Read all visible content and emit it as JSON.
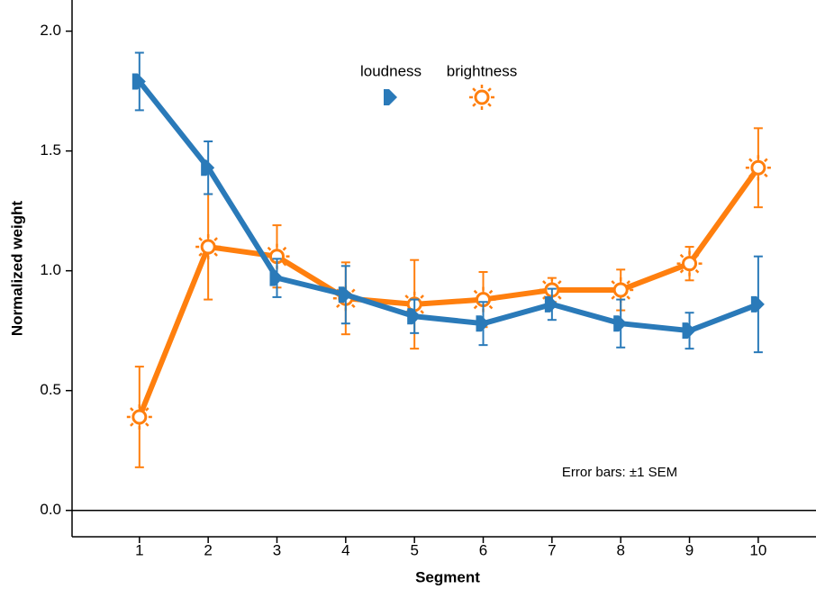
{
  "chart_data": {
    "type": "line",
    "x": [
      1,
      2,
      3,
      4,
      5,
      6,
      7,
      8,
      9,
      10
    ],
    "series": [
      {
        "name": "loudness",
        "color": "#2a7ab9",
        "marker": "flag",
        "values": [
          1.79,
          1.43,
          0.97,
          0.9,
          0.81,
          0.78,
          0.86,
          0.78,
          0.75,
          0.86
        ],
        "errors": [
          0.12,
          0.11,
          0.08,
          0.12,
          0.07,
          0.09,
          0.065,
          0.1,
          0.075,
          0.2
        ]
      },
      {
        "name": "brightness",
        "color": "#ff7f0e",
        "marker": "sun",
        "values": [
          0.39,
          1.1,
          1.06,
          0.885,
          0.86,
          0.88,
          0.92,
          0.92,
          1.03,
          1.43
        ],
        "errors": [
          0.21,
          0.22,
          0.13,
          0.15,
          0.185,
          0.115,
          0.05,
          0.085,
          0.07,
          0.165
        ]
      }
    ],
    "xlabel": "Segment",
    "ylabel": "Normalized weight",
    "xlim": [
      0.02,
      10.84
    ],
    "ylim": [
      -0.11,
      2.13
    ],
    "xticks": [
      1,
      2,
      3,
      4,
      5,
      6,
      7,
      8,
      9,
      10
    ],
    "yticks": [
      {
        "value": 0,
        "label": "0.0"
      },
      0.5,
      {
        "value": 1,
        "label": "1.0"
      },
      1.5,
      {
        "value": 2,
        "label": "2.0"
      }
    ],
    "hline": 0,
    "annotation": "Error bars: ±1 SEM",
    "legend": "top"
  }
}
